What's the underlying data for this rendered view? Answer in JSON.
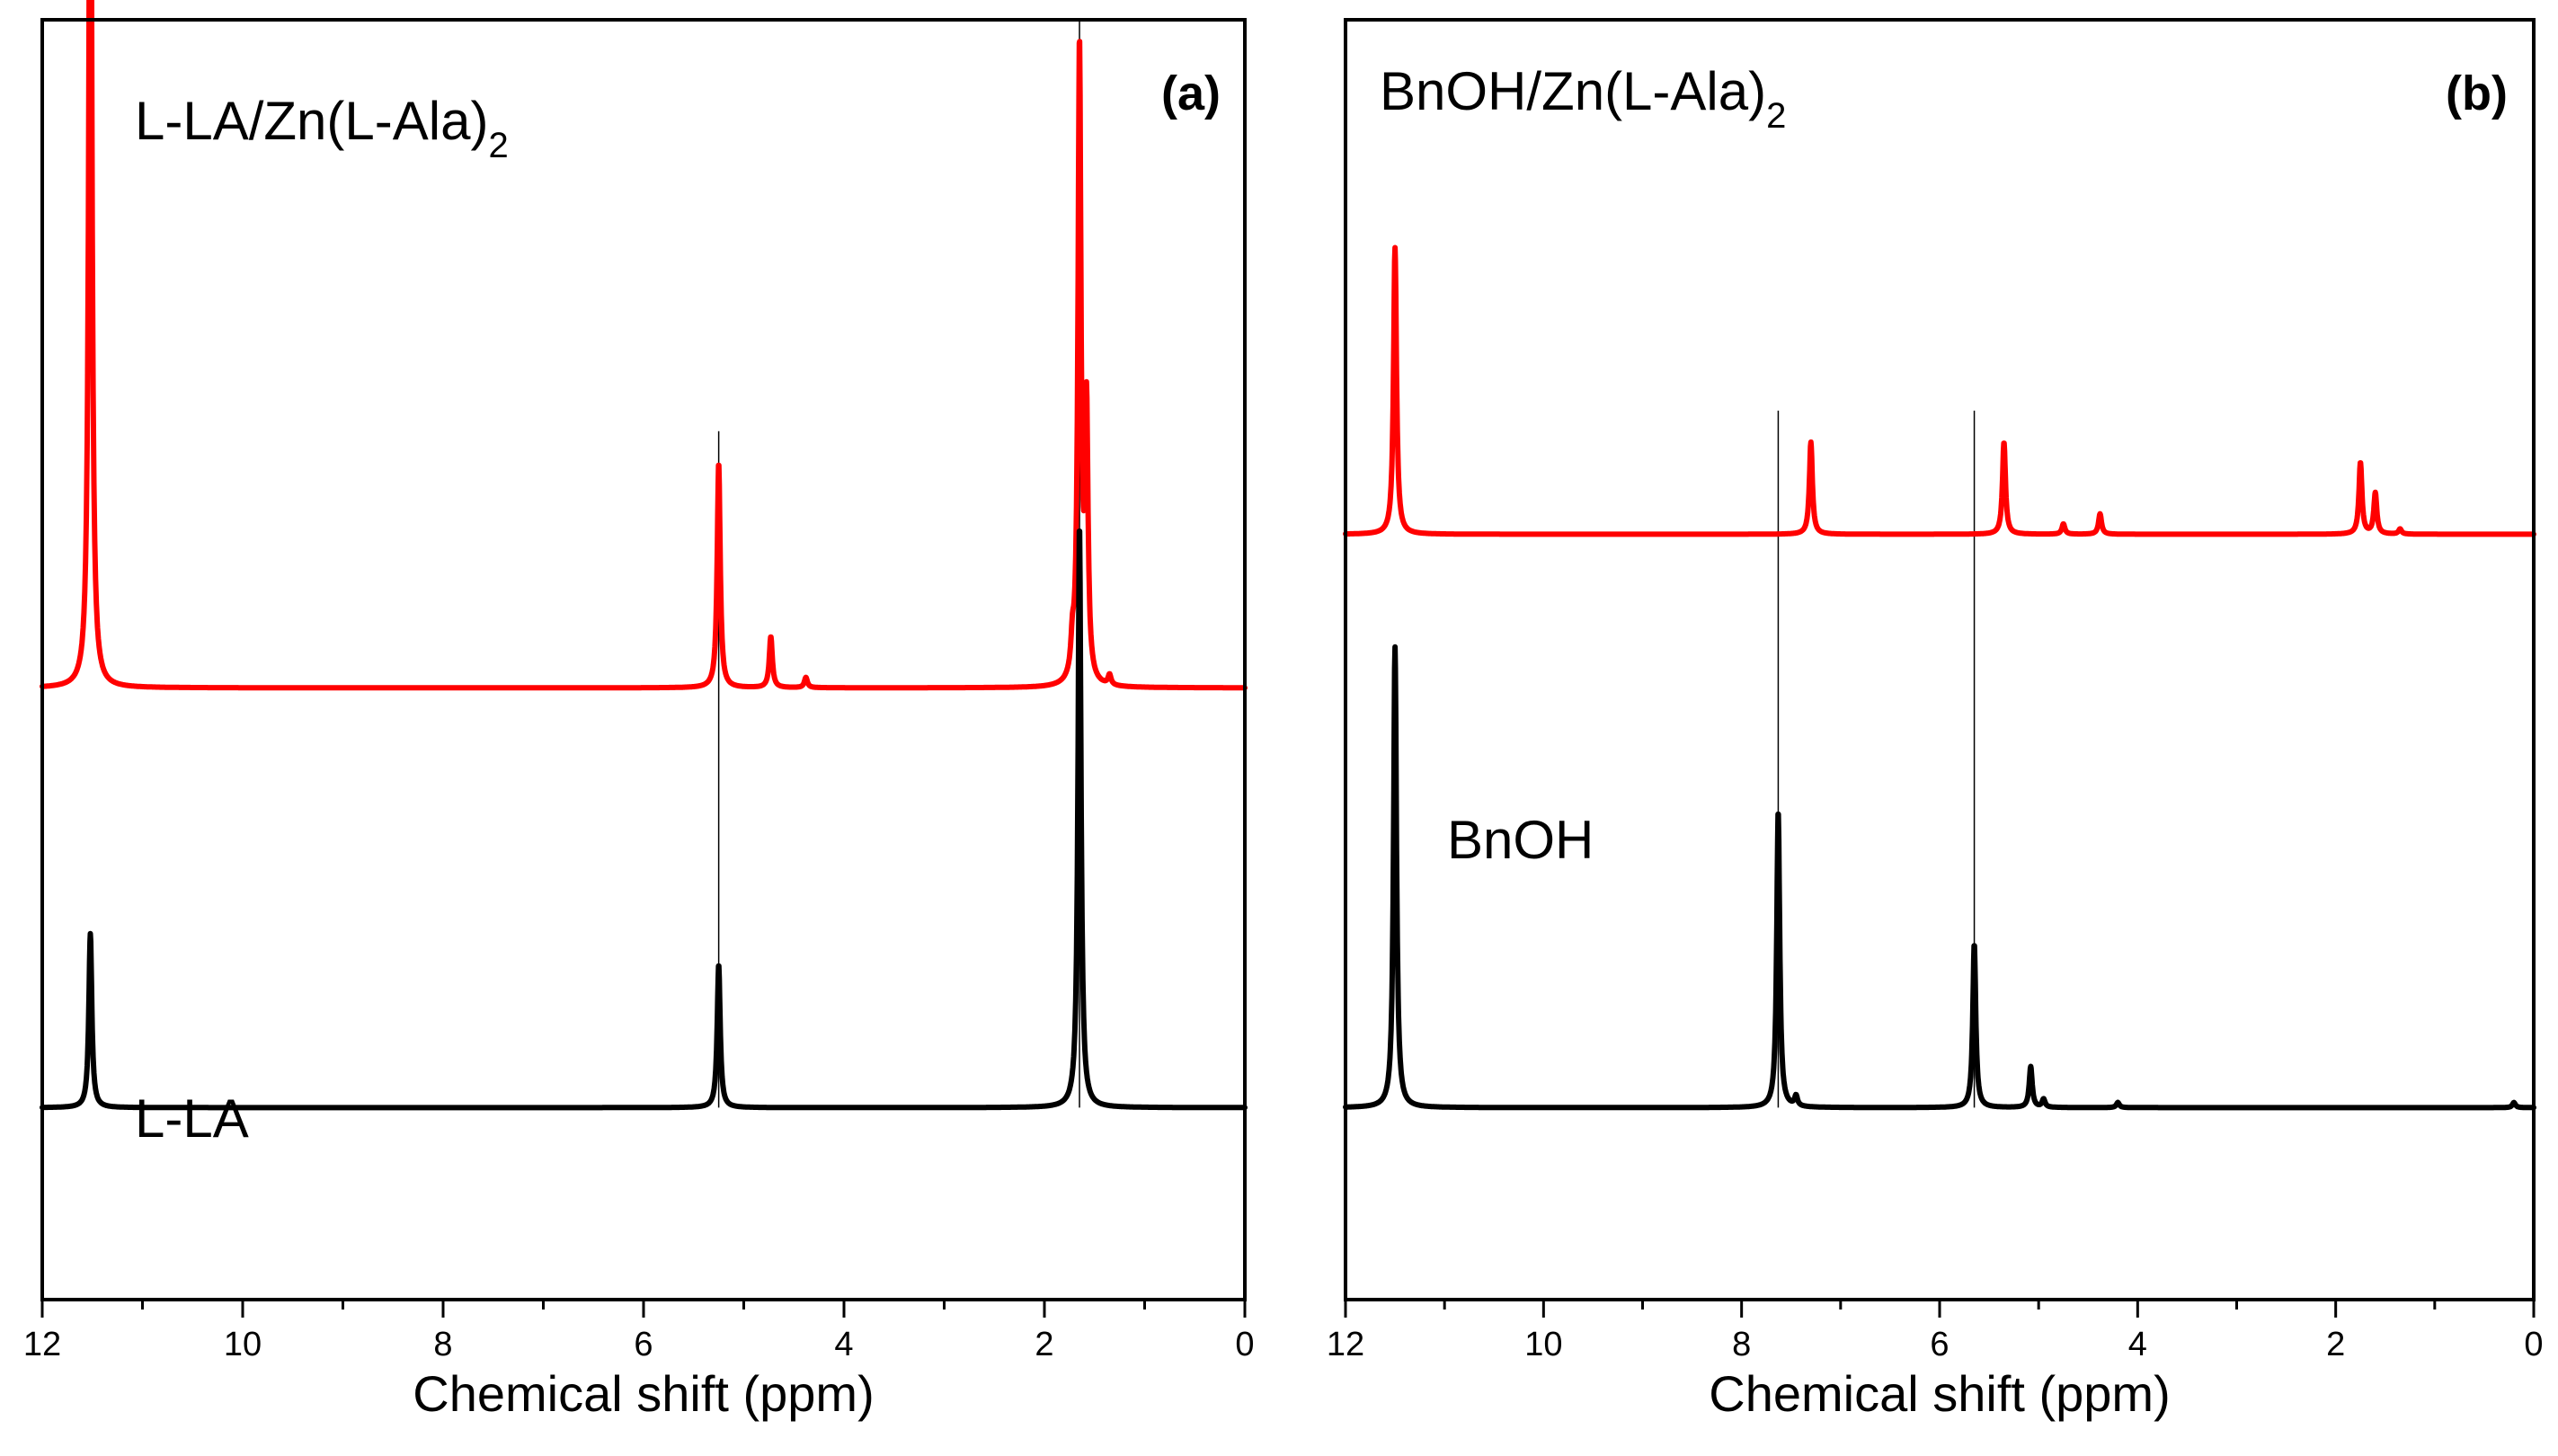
{
  "colors": {
    "red": "#ff0000",
    "black": "#000000"
  },
  "chart_data": [
    {
      "type": "line",
      "panel_label": "(a)",
      "xlabel": "Chemical shift (ppm)",
      "xlim": [
        12,
        0
      ],
      "x_reversed": true,
      "xticks": [
        12,
        10,
        8,
        6,
        4,
        2,
        0
      ],
      "y_axis_visible": false,
      "vertical_guides": [
        5.25,
        1.65
      ],
      "series": [
        {
          "color": "#ff0000",
          "baseline": 0.41,
          "annotation": {
            "text": "L-LA/Zn(L-Ala)",
            "sub": "2"
          },
          "peaks": [
            {
              "x": 11.52,
              "y": 1.0
            },
            {
              "x": 5.25,
              "y": 0.22
            },
            {
              "x": 4.73,
              "y": 0.05
            },
            {
              "x": 4.38,
              "y": 0.01
            },
            {
              "x": 1.72,
              "y": 0.03
            },
            {
              "x": 1.65,
              "y": 0.62
            },
            {
              "x": 1.58,
              "y": 0.26
            },
            {
              "x": 1.35,
              "y": 0.01
            }
          ]
        },
        {
          "color": "#000000",
          "baseline": 0.0,
          "annotation": {
            "text": "L-LA",
            "sub": ""
          },
          "peaks": [
            {
              "x": 11.52,
              "y": 0.17
            },
            {
              "x": 5.25,
              "y": 0.14
            },
            {
              "x": 1.65,
              "y": 0.57
            }
          ]
        }
      ]
    },
    {
      "type": "line",
      "panel_label": "(b)",
      "xlabel": "Chemical shift (ppm)",
      "xlim": [
        12,
        0
      ],
      "x_reversed": true,
      "xticks": [
        12,
        10,
        8,
        6,
        4,
        2,
        0
      ],
      "y_axis_visible": false,
      "vertical_guides": [
        7.63,
        5.65
      ],
      "series": [
        {
          "color": "#ff0000",
          "baseline": 0.56,
          "annotation": {
            "text": "BnOH/Zn(L-Ala)",
            "sub": "2"
          },
          "peaks": [
            {
              "x": 11.5,
              "y": 0.28
            },
            {
              "x": 7.3,
              "y": 0.09
            },
            {
              "x": 5.35,
              "y": 0.09
            },
            {
              "x": 4.75,
              "y": 0.01
            },
            {
              "x": 4.38,
              "y": 0.02
            },
            {
              "x": 1.75,
              "y": 0.07
            },
            {
              "x": 1.6,
              "y": 0.04
            },
            {
              "x": 1.35,
              "y": 0.005
            }
          ]
        },
        {
          "color": "#000000",
          "baseline": 0.0,
          "annotation": {
            "text": "BnOH",
            "sub": ""
          },
          "peaks": [
            {
              "x": 11.5,
              "y": 0.45
            },
            {
              "x": 7.63,
              "y": 0.29
            },
            {
              "x": 7.45,
              "y": 0.01
            },
            {
              "x": 5.65,
              "y": 0.16
            },
            {
              "x": 5.08,
              "y": 0.04
            },
            {
              "x": 4.95,
              "y": 0.008
            },
            {
              "x": 4.2,
              "y": 0.005
            },
            {
              "x": 0.2,
              "y": 0.005
            }
          ]
        }
      ]
    }
  ]
}
